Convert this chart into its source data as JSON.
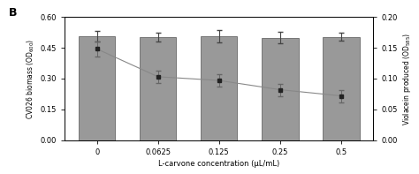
{
  "categories": [
    "0",
    "0.0625",
    "0.125",
    "0.25",
    "0.5"
  ],
  "bar_values": [
    0.505,
    0.503,
    0.508,
    0.498,
    0.503
  ],
  "bar_errors": [
    0.025,
    0.022,
    0.03,
    0.028,
    0.02
  ],
  "line_values": [
    0.148,
    0.103,
    0.097,
    0.082,
    0.072
  ],
  "line_errors": [
    0.012,
    0.01,
    0.01,
    0.01,
    0.01
  ],
  "bar_color": "#999999",
  "line_color": "#888888",
  "marker_color": "#222222",
  "ylim_left": [
    0.0,
    0.6
  ],
  "ylim_right": [
    0.0,
    0.2
  ],
  "yticks_left": [
    0.0,
    0.15,
    0.3,
    0.45,
    0.6
  ],
  "yticks_right": [
    0.0,
    0.05,
    0.1,
    0.15,
    0.2
  ],
  "xlabel": "L-carvone concentration (μL/mL)",
  "ylabel_left": "CV026 biomass (OD600)",
  "ylabel_right": "Violacein produced (OD585)",
  "panel_label": "B",
  "background_color": "#ffffff"
}
